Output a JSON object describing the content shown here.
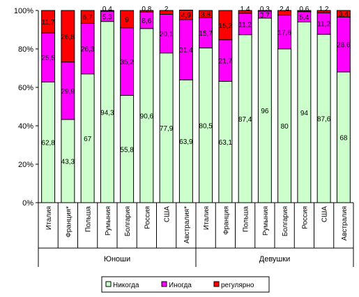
{
  "chart_data": {
    "type": "bar",
    "stacked": true,
    "percent": true,
    "ylim": [
      0,
      100
    ],
    "yticks": [
      "0%",
      "20%",
      "40%",
      "60%",
      "80%",
      "100%"
    ],
    "groups": [
      {
        "name": "Юноши",
        "categories": [
          "Италия",
          "Франция*",
          "Польша",
          "Румыния",
          "Болгария",
          "Россия",
          "США",
          "Австралия*"
        ]
      },
      {
        "name": "Девушки",
        "categories": [
          "Италия",
          "Франция",
          "Польша",
          "Румыния",
          "Болгария",
          "Россия",
          "США",
          "Австралия"
        ]
      }
    ],
    "series": [
      {
        "name": "Никогда",
        "color": "#ccffcc",
        "values": [
          62.8,
          43.3,
          67,
          94.3,
          55.8,
          90.6,
          77.9,
          63.9,
          80.5,
          63.1,
          87.4,
          96,
          80,
          94,
          87.6,
          68
        ],
        "labels": [
          "62,8",
          "43,3",
          "67",
          "94,3",
          "55,8",
          "90,6",
          "77,9",
          "63,9",
          "80,5",
          "63,1",
          "87,4",
          "96",
          "80",
          "94",
          "87,6",
          "68"
        ]
      },
      {
        "name": "Иногда",
        "color": "#ff00ff",
        "values": [
          25.5,
          29.9,
          26.3,
          5.3,
          35.2,
          8.6,
          20.1,
          31.4,
          15.7,
          21.7,
          11.2,
          3.7,
          17.6,
          5.4,
          11.2,
          28.6
        ],
        "labels": [
          "25,5",
          "29,9",
          "26,3",
          "5,3",
          "35,2",
          "8,6",
          "20,1",
          "31,4",
          "15,7",
          "21,7",
          "11,2",
          "3,7",
          "17,6",
          "5,4",
          "11,2",
          "28,6"
        ]
      },
      {
        "name": "регулярно",
        "color": "#ff0000",
        "values": [
          11.7,
          26.8,
          6.7,
          0.4,
          9,
          0.8,
          2,
          4.9,
          3.8,
          15.2,
          1.4,
          0.3,
          2.4,
          0.6,
          1.2,
          3.4
        ],
        "labels": [
          "11,7",
          "26,8",
          "6,7",
          "0,4",
          "9",
          "0,8",
          "2",
          "4,9",
          "3,8",
          "15,2",
          "1,4",
          "0,3",
          "2,4",
          "0,6",
          "1,2",
          "3,4"
        ]
      }
    ],
    "legend_position": "bottom"
  }
}
